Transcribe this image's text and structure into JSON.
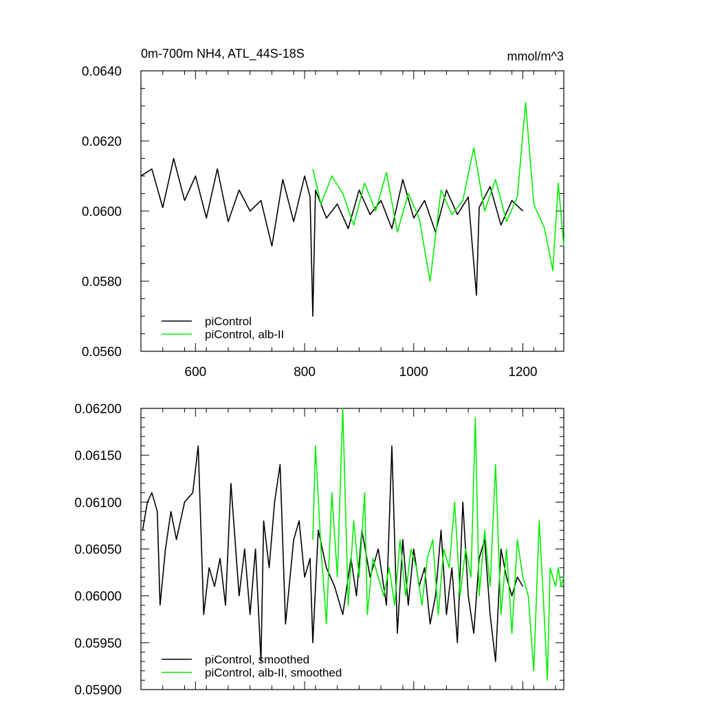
{
  "chart_data": [
    {
      "type": "line",
      "title": "0m-700m NH4, ATL_44S-18S",
      "units": "mmol/m^3",
      "xlim": [
        500,
        1275
      ],
      "ylim": [
        0.056,
        0.064
      ],
      "xticks": [
        600,
        800,
        1000,
        1200
      ],
      "xtick_labels": [
        "600",
        "800",
        "1000",
        "1200"
      ],
      "yticks": [
        0.056,
        0.058,
        0.06,
        0.062,
        0.064
      ],
      "ytick_labels": [
        "0.0560",
        "0.0580",
        "0.0600",
        "0.0620",
        "0.0640"
      ],
      "legend_position": "bottom-left",
      "series": [
        {
          "name": "piControl",
          "color": "#000000",
          "x": [
            500,
            520,
            540,
            560,
            580,
            600,
            620,
            640,
            660,
            680,
            700,
            720,
            740,
            760,
            780,
            800,
            810,
            815,
            820,
            840,
            860,
            880,
            900,
            920,
            940,
            960,
            980,
            1000,
            1020,
            1040,
            1060,
            1080,
            1100,
            1115,
            1120,
            1140,
            1160,
            1180,
            1200
          ],
          "y": [
            0.061,
            0.0612,
            0.0601,
            0.0615,
            0.0603,
            0.061,
            0.0598,
            0.0612,
            0.0597,
            0.0606,
            0.06,
            0.0603,
            0.059,
            0.0609,
            0.0597,
            0.061,
            0.0604,
            0.057,
            0.0606,
            0.0598,
            0.0602,
            0.0595,
            0.0606,
            0.0599,
            0.0603,
            0.0595,
            0.0609,
            0.0598,
            0.0603,
            0.0594,
            0.0606,
            0.0599,
            0.0604,
            0.0576,
            0.0601,
            0.0607,
            0.0596,
            0.0603,
            0.06
          ]
        },
        {
          "name": "piControl, alb-II",
          "color": "#00ee00",
          "x": [
            815,
            830,
            850,
            870,
            890,
            910,
            930,
            950,
            970,
            990,
            1010,
            1030,
            1050,
            1070,
            1090,
            1110,
            1130,
            1150,
            1170,
            1190,
            1205,
            1220,
            1240,
            1255,
            1265,
            1275
          ],
          "y": [
            0.0612,
            0.0602,
            0.061,
            0.0605,
            0.0596,
            0.0608,
            0.06,
            0.0611,
            0.0594,
            0.0605,
            0.0598,
            0.058,
            0.0606,
            0.0599,
            0.0603,
            0.0618,
            0.06,
            0.0609,
            0.0597,
            0.0604,
            0.0631,
            0.0602,
            0.0595,
            0.0583,
            0.0608,
            0.059
          ]
        }
      ]
    },
    {
      "type": "line",
      "xlim": [
        500,
        1275
      ],
      "ylim": [
        0.059,
        0.062
      ],
      "xticks": [
        600,
        800,
        1000,
        1200
      ],
      "yticks": [
        0.059,
        0.0595,
        0.06,
        0.0605,
        0.061,
        0.0615,
        0.062
      ],
      "ytick_labels": [
        "0.05900",
        "0.05950",
        "0.06000",
        "0.06050",
        "0.06100",
        "0.06150",
        "0.06200"
      ],
      "legend_position": "bottom-left",
      "series": [
        {
          "name": "piControl, smoothed",
          "color": "#000000",
          "x": [
            503,
            512,
            520,
            530,
            535,
            545,
            555,
            565,
            580,
            595,
            605,
            615,
            625,
            635,
            645,
            655,
            665,
            680,
            690,
            700,
            710,
            720,
            725,
            735,
            745,
            755,
            765,
            780,
            790,
            800,
            810,
            815,
            825,
            840,
            855,
            870,
            885,
            895,
            905,
            920,
            935,
            950,
            960,
            970,
            980,
            990,
            1000,
            1010,
            1020,
            1030,
            1040,
            1050,
            1060,
            1070,
            1080,
            1090,
            1100,
            1110,
            1120,
            1130,
            1140,
            1150,
            1160,
            1170,
            1180,
            1190,
            1200
          ],
          "y": [
            0.0607,
            0.061,
            0.0611,
            0.0609,
            0.0599,
            0.0605,
            0.0609,
            0.0606,
            0.061,
            0.0611,
            0.0616,
            0.0598,
            0.0603,
            0.0601,
            0.0604,
            0.0599,
            0.0612,
            0.06,
            0.0605,
            0.0598,
            0.0605,
            0.0593,
            0.0608,
            0.0603,
            0.061,
            0.0614,
            0.0597,
            0.0606,
            0.0608,
            0.0602,
            0.0604,
            0.0595,
            0.0607,
            0.0603,
            0.0601,
            0.0598,
            0.0604,
            0.06,
            0.0607,
            0.0602,
            0.0605,
            0.0599,
            0.0616,
            0.0596,
            0.0606,
            0.0599,
            0.0605,
            0.0601,
            0.0603,
            0.0597,
            0.06,
            0.0607,
            0.0598,
            0.0603,
            0.0595,
            0.061,
            0.06,
            0.0596,
            0.0604,
            0.0606,
            0.0598,
            0.0593,
            0.0605,
            0.0602,
            0.06,
            0.0602,
            0.0601
          ]
        },
        {
          "name": "piControl, alb-II, smoothed",
          "color": "#00ee00",
          "x": [
            815,
            820,
            830,
            840,
            850,
            860,
            870,
            880,
            890,
            900,
            910,
            915,
            925,
            935,
            945,
            955,
            965,
            975,
            985,
            995,
            1005,
            1015,
            1025,
            1035,
            1045,
            1055,
            1065,
            1075,
            1085,
            1095,
            1105,
            1113,
            1120,
            1130,
            1140,
            1150,
            1160,
            1170,
            1180,
            1190,
            1200,
            1210,
            1220,
            1230,
            1240,
            1245,
            1250,
            1260,
            1265,
            1270,
            1275
          ],
          "y": [
            0.0606,
            0.0616,
            0.0605,
            0.0597,
            0.0611,
            0.0602,
            0.062,
            0.0599,
            0.0608,
            0.0602,
            0.0611,
            0.0598,
            0.0604,
            0.0602,
            0.06,
            0.0603,
            0.0599,
            0.0606,
            0.06,
            0.0605,
            0.0603,
            0.0599,
            0.0604,
            0.0606,
            0.0598,
            0.0605,
            0.0603,
            0.061,
            0.06,
            0.0605,
            0.0602,
            0.0619,
            0.06,
            0.0607,
            0.0601,
            0.0614,
            0.0598,
            0.0605,
            0.0596,
            0.0606,
            0.0602,
            0.06,
            0.0592,
            0.0608,
            0.0597,
            0.0591,
            0.0603,
            0.0601,
            0.0603,
            0.0601,
            0.0602
          ]
        }
      ]
    }
  ]
}
